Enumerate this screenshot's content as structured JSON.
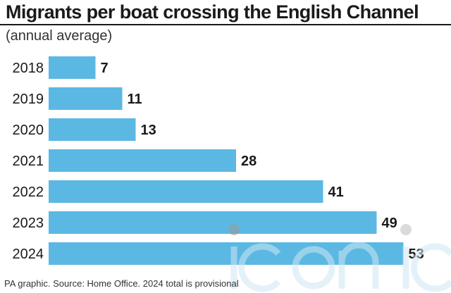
{
  "chart_data": {
    "type": "bar",
    "orientation": "horizontal",
    "title": "Migrants per boat crossing the English Channel",
    "subtitle": "(annual average)",
    "categories": [
      "2018",
      "2019",
      "2020",
      "2021",
      "2022",
      "2023",
      "2024"
    ],
    "values": [
      7,
      11,
      13,
      28,
      41,
      49,
      53
    ],
    "xlim": [
      0,
      60
    ],
    "grid": false,
    "legend": "none",
    "bar_color": "#5bb8e3",
    "source": "PA graphic. Source: Home Office. 2024 total is provisional"
  },
  "watermark": {
    "text": "iconic",
    "color": "#cfe6f3"
  }
}
